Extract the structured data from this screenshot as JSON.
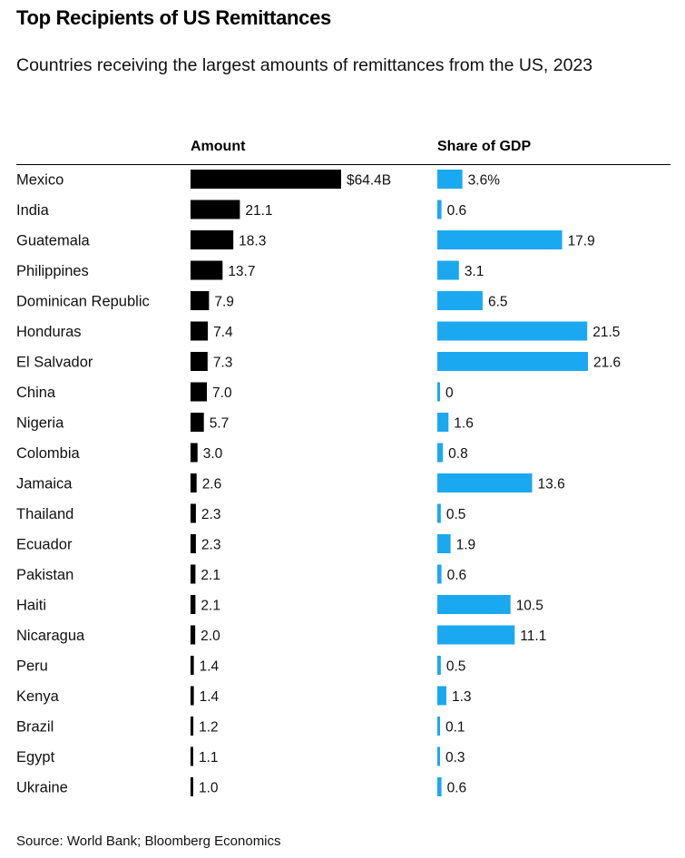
{
  "title": "Top Recipients of US Remittances",
  "subtitle": "Countries receiving the largest amounts of remittances from the US, 2023",
  "source": "Source: World Bank; Bloomberg Economics",
  "colors": {
    "amount_bar": "#000000",
    "share_bar": "#1aa9f0"
  },
  "chart_data": {
    "type": "bar",
    "orientation": "horizontal",
    "categories": [
      "Mexico",
      "India",
      "Guatemala",
      "Philippines",
      "Dominican Republic",
      "Honduras",
      "El Salvador",
      "China",
      "Nigeria",
      "Colombia",
      "Jamaica",
      "Thailand",
      "Ecuador",
      "Pakistan",
      "Haiti",
      "Nicaragua",
      "Peru",
      "Kenya",
      "Brazil",
      "Egypt",
      "Ukraine"
    ],
    "series": [
      {
        "name": "Amount",
        "values": [
          64.4,
          21.1,
          18.3,
          13.7,
          7.9,
          7.4,
          7.3,
          7.0,
          5.7,
          3.0,
          2.6,
          2.3,
          2.3,
          2.1,
          2.1,
          2.0,
          1.4,
          1.4,
          1.2,
          1.1,
          1.0
        ],
        "labels": [
          "$64.4B",
          "21.1",
          "18.3",
          "13.7",
          "7.9",
          "7.4",
          "7.3",
          "7.0",
          "5.7",
          "3.0",
          "2.6",
          "2.3",
          "2.3",
          "2.1",
          "2.1",
          "2.0",
          "1.4",
          "1.4",
          "1.2",
          "1.1",
          "1.0"
        ]
      },
      {
        "name": "Share of GDP",
        "values": [
          3.6,
          0.6,
          17.9,
          3.1,
          6.5,
          21.5,
          21.6,
          0,
          1.6,
          0.8,
          13.6,
          0.5,
          1.9,
          0.6,
          10.5,
          11.1,
          0.5,
          1.3,
          0.1,
          0.3,
          0.6
        ],
        "labels": [
          "3.6%",
          "0.6",
          "17.9",
          "3.1",
          "6.5",
          "21.5",
          "21.6",
          "0",
          "1.6",
          "0.8",
          "13.6",
          "0.5",
          "1.9",
          "0.6",
          "10.5",
          "11.1",
          "0.5",
          "1.3",
          "0.1",
          "0.3",
          "0.6"
        ]
      }
    ]
  }
}
